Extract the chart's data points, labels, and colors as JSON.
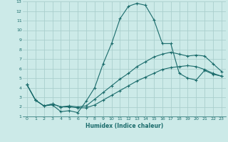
{
  "xlabel": "Humidex (Indice chaleur)",
  "bg_color": "#cceae8",
  "grid_color": "#aacfcd",
  "line_color": "#1a6b6b",
  "xlim": [
    -0.5,
    23.5
  ],
  "ylim": [
    1,
    13
  ],
  "xtick_labels": [
    "0",
    "1",
    "2",
    "3",
    "4",
    "5",
    "6",
    "7",
    "8",
    "9",
    "10",
    "11",
    "12",
    "13",
    "14",
    "15",
    "16",
    "17",
    "18",
    "19",
    "20",
    "21",
    "22",
    "23"
  ],
  "xticks": [
    0,
    1,
    2,
    3,
    4,
    5,
    6,
    7,
    8,
    9,
    10,
    11,
    12,
    13,
    14,
    15,
    16,
    17,
    18,
    19,
    20,
    21,
    22,
    23
  ],
  "yticks": [
    1,
    2,
    3,
    4,
    5,
    6,
    7,
    8,
    9,
    10,
    11,
    12,
    13
  ],
  "line1_x": [
    0,
    1,
    2,
    3,
    4,
    5,
    6,
    7,
    8,
    9,
    10,
    11,
    12,
    13,
    14,
    15,
    16,
    17,
    18,
    19,
    20,
    21,
    22,
    23
  ],
  "line1_y": [
    4.3,
    2.7,
    2.1,
    2.2,
    1.5,
    1.6,
    1.4,
    2.6,
    4.0,
    6.5,
    8.6,
    11.2,
    12.5,
    12.8,
    12.6,
    11.1,
    8.6,
    8.6,
    5.5,
    5.0,
    4.8,
    5.8,
    5.4,
    5.2
  ],
  "line2_x": [
    0,
    1,
    2,
    3,
    4,
    5,
    6,
    7,
    8,
    9,
    10,
    11,
    12,
    13,
    14,
    15,
    16,
    17,
    18,
    19,
    20,
    21,
    22,
    23
  ],
  "line2_y": [
    4.3,
    2.7,
    2.1,
    2.3,
    2.0,
    2.1,
    2.0,
    2.1,
    2.8,
    3.5,
    4.2,
    4.9,
    5.5,
    6.2,
    6.7,
    7.2,
    7.5,
    7.7,
    7.5,
    7.3,
    7.4,
    7.3,
    6.5,
    5.7
  ],
  "line3_x": [
    0,
    1,
    2,
    3,
    4,
    5,
    6,
    7,
    8,
    9,
    10,
    11,
    12,
    13,
    14,
    15,
    16,
    17,
    18,
    19,
    20,
    21,
    22,
    23
  ],
  "line3_y": [
    4.3,
    2.7,
    2.1,
    2.3,
    2.0,
    2.0,
    1.9,
    1.9,
    2.2,
    2.7,
    3.2,
    3.7,
    4.2,
    4.7,
    5.1,
    5.5,
    5.9,
    6.1,
    6.2,
    6.3,
    6.2,
    5.9,
    5.5,
    5.2
  ]
}
